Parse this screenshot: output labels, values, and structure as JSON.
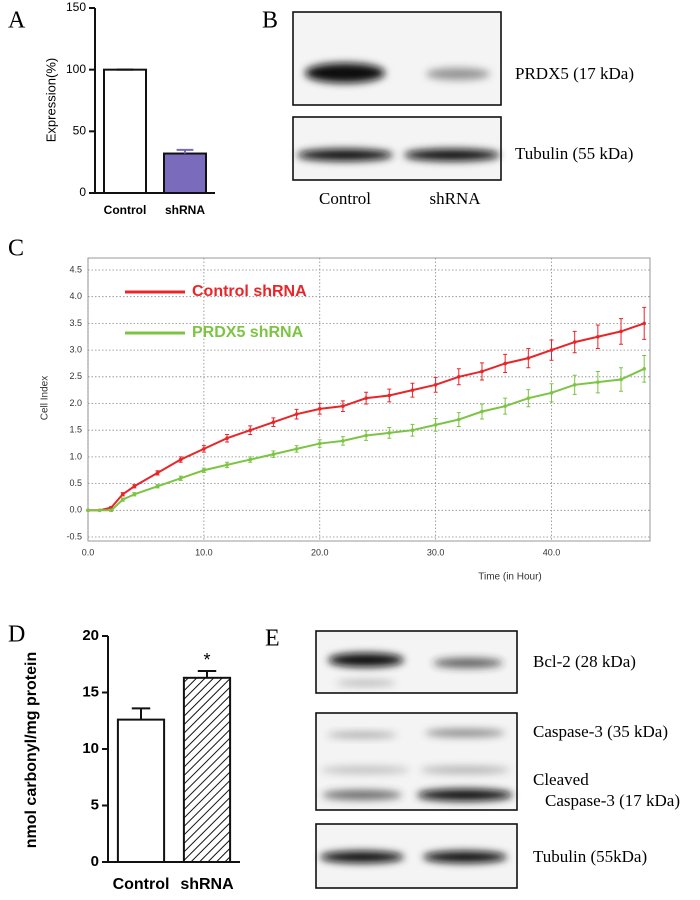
{
  "chart_data": [
    {
      "type": "bar",
      "panel_label": "A",
      "ylabel": "Expression(%)",
      "categories": [
        "Control",
        "shRNA"
      ],
      "values": [
        100,
        32
      ],
      "errors": [
        0,
        3
      ],
      "colors": [
        "#ffffff",
        "#7b6bbd"
      ],
      "hatch": [
        false,
        false
      ],
      "ylim": [
        0,
        150
      ],
      "yticks": [
        0,
        50,
        100,
        150
      ],
      "grid": false
    },
    {
      "type": "line",
      "panel_label": "C",
      "xlabel": "Time (in Hour)",
      "ylabel": "Cell Index",
      "x": [
        0,
        1,
        2,
        3,
        4,
        6,
        8,
        10,
        12,
        14,
        16,
        18,
        20,
        22,
        24,
        26,
        28,
        30,
        32,
        34,
        36,
        38,
        40,
        42,
        44,
        46,
        48
      ],
      "series": [
        {
          "name": "Control shRNA",
          "color": "#e8262a",
          "values": [
            0,
            0,
            0.05,
            0.3,
            0.45,
            0.7,
            0.95,
            1.15,
            1.35,
            1.5,
            1.65,
            1.8,
            1.9,
            1.95,
            2.1,
            2.15,
            2.25,
            2.35,
            2.5,
            2.6,
            2.75,
            2.85,
            3.0,
            3.15,
            3.25,
            3.35,
            3.5
          ],
          "errors": [
            0,
            0,
            0.02,
            0.03,
            0.03,
            0.04,
            0.05,
            0.06,
            0.07,
            0.08,
            0.08,
            0.09,
            0.1,
            0.1,
            0.11,
            0.12,
            0.13,
            0.14,
            0.15,
            0.16,
            0.17,
            0.18,
            0.19,
            0.2,
            0.22,
            0.24,
            0.3
          ]
        },
        {
          "name": "PRDX5 shRNA",
          "color": "#7cc444",
          "values": [
            0,
            0,
            0,
            0.2,
            0.3,
            0.45,
            0.6,
            0.75,
            0.85,
            0.95,
            1.05,
            1.15,
            1.25,
            1.3,
            1.4,
            1.45,
            1.5,
            1.6,
            1.7,
            1.85,
            1.95,
            2.1,
            2.2,
            2.35,
            2.4,
            2.45,
            2.65
          ],
          "errors": [
            0,
            0,
            0.02,
            0.03,
            0.03,
            0.03,
            0.04,
            0.04,
            0.05,
            0.05,
            0.06,
            0.06,
            0.07,
            0.08,
            0.09,
            0.1,
            0.11,
            0.12,
            0.13,
            0.14,
            0.15,
            0.16,
            0.17,
            0.18,
            0.2,
            0.22,
            0.25
          ]
        }
      ],
      "xlim": [
        0,
        48.5
      ],
      "xticks": [
        {
          "value": 0,
          "label": "0.0"
        },
        {
          "value": 10,
          "label": "10.0"
        },
        {
          "value": 20,
          "label": "20.0"
        },
        {
          "value": 30,
          "label": "30.0"
        },
        {
          "value": 40,
          "label": "40.0"
        }
      ],
      "ylim": [
        -0.5,
        4.5
      ],
      "yticks": [
        -0.5,
        {
          "value": 0,
          "label": "0.0"
        },
        0.5,
        {
          "value": 1,
          "label": "1.0"
        },
        1.5,
        {
          "value": 2,
          "label": "2.0"
        },
        2.5,
        {
          "value": 3,
          "label": "3.0"
        },
        3.5,
        {
          "value": 4,
          "label": "4.0"
        },
        4.5
      ],
      "grid": true,
      "legend": "upper left"
    },
    {
      "type": "bar",
      "panel_label": "D",
      "ylabel": "nmol carbonyl/mg protein",
      "categories": [
        "Control",
        "shRNA"
      ],
      "values": [
        12.6,
        16.3
      ],
      "errors": [
        1.0,
        0.6
      ],
      "colors": [
        "#ffffff",
        "#ffffff"
      ],
      "hatch": [
        false,
        true
      ],
      "ylim": [
        0,
        20
      ],
      "yticks": [
        0,
        5,
        10,
        15,
        20
      ],
      "grid": false,
      "annotations": [
        {
          "text": "*",
          "category": "shRNA"
        }
      ]
    }
  ],
  "blots": [
    {
      "panel_label": "B",
      "lanes": [
        "Control",
        "shRNA"
      ],
      "bands": [
        "PRDX5 (17 kDa)",
        "Tubulin (55 kDa)"
      ]
    },
    {
      "panel_label": "E",
      "bands": [
        "Bcl-2 (28 kDa)",
        "Caspase-3 (35 kDa)",
        "Cleaved",
        "Caspase-3 (17 kDa)",
        "Tubulin (55kDa)"
      ]
    }
  ]
}
